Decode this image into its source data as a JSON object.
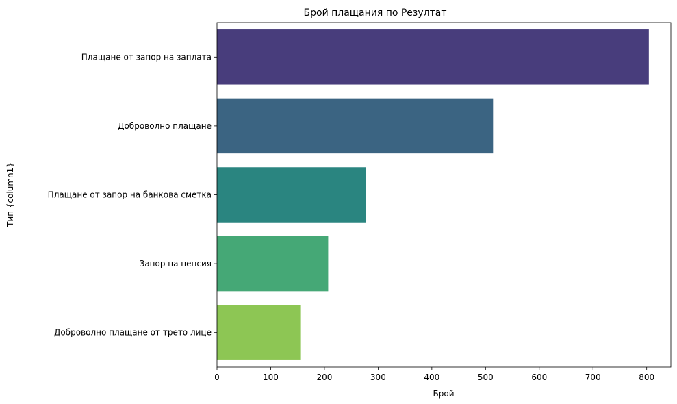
{
  "chart_data": {
    "type": "bar",
    "orientation": "horizontal",
    "title": "Брой плащания по Резултат",
    "xlabel": "Брой",
    "ylabel": "Тип {column1}",
    "categories": [
      "Плащане от запор на заплата",
      "Доброволно плащане",
      "Плащане от запор на банкова сметка",
      "Запор на пенсия",
      "Доброволно плащане от трето лице"
    ],
    "values": [
      804,
      514,
      277,
      207,
      155
    ],
    "colors": [
      "#483d7c",
      "#3b6482",
      "#2a8580",
      "#45a876",
      "#8dc654"
    ],
    "xlim": [
      0,
      845
    ],
    "xticks": [
      0,
      100,
      200,
      300,
      400,
      500,
      600,
      700,
      800
    ],
    "grid": false,
    "legend": "none"
  }
}
